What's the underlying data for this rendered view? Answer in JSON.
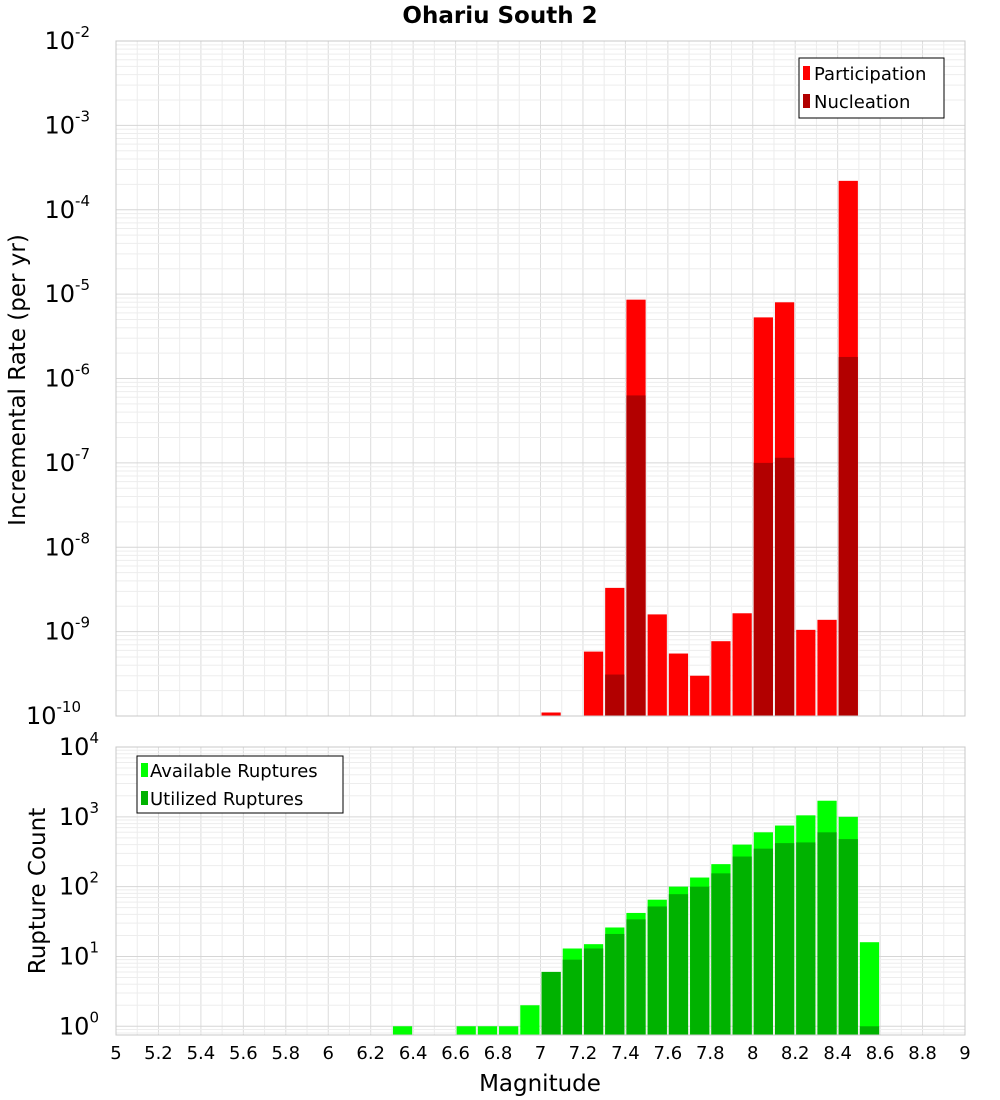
{
  "title": "Ohariu South 2",
  "chart_data": [
    {
      "type": "bar",
      "scale_y": "log",
      "title": "Ohariu South 2",
      "xlabel": "Magnitude",
      "ylabel": "Incremental Rate (per yr)",
      "xlim": [
        5,
        9
      ],
      "ylim": [
        1e-10,
        0.01
      ],
      "y_ticks": [
        {
          "base": "10",
          "exp": "-2"
        },
        {
          "base": "10",
          "exp": "-3"
        },
        {
          "base": "10",
          "exp": "-4"
        },
        {
          "base": "10",
          "exp": "-5"
        },
        {
          "base": "10",
          "exp": "-6"
        },
        {
          "base": "10",
          "exp": "-7"
        },
        {
          "base": "10",
          "exp": "-8"
        },
        {
          "base": "10",
          "exp": "-9"
        },
        {
          "base": "10",
          "exp": "-10"
        }
      ],
      "grid": true,
      "legend": "top-right",
      "x": [
        7.05,
        7.25,
        7.35,
        7.45,
        7.55,
        7.65,
        7.75,
        7.85,
        7.95,
        8.05,
        8.15,
        8.25,
        8.35,
        8.45
      ],
      "series": [
        {
          "name": "Participation",
          "color": "#ff0000",
          "values": [
            1.1e-10,
            5.8e-10,
            3.3e-09,
            8.6e-06,
            1.6e-09,
            5.5e-10,
            3e-10,
            7.7e-10,
            1.65e-09,
            5.3e-06,
            8e-06,
            1.05e-09,
            1.38e-09,
            0.00022
          ]
        },
        {
          "name": "Nucleation",
          "color": "#b20000",
          "values": [
            null,
            null,
            3.1e-10,
            6.3e-07,
            null,
            null,
            null,
            null,
            null,
            1e-07,
            1.15e-07,
            null,
            null,
            1.8e-06
          ]
        }
      ]
    },
    {
      "type": "bar",
      "scale_y": "log",
      "xlabel": "Magnitude",
      "ylabel": "Rupture Count",
      "xlim": [
        5,
        9
      ],
      "ylim": [
        0.75,
        10000
      ],
      "x_ticks": [
        "5",
        "5.2",
        "5.4",
        "5.6",
        "5.8",
        "6",
        "6.2",
        "6.4",
        "6.6",
        "6.8",
        "7",
        "7.2",
        "7.4",
        "7.6",
        "7.8",
        "8",
        "8.2",
        "8.4",
        "8.6",
        "8.8",
        "9"
      ],
      "y_ticks": [
        {
          "base": "10",
          "exp": "4"
        },
        {
          "base": "10",
          "exp": "3"
        },
        {
          "base": "10",
          "exp": "2"
        },
        {
          "base": "10",
          "exp": "1"
        },
        {
          "base": "10",
          "exp": "0"
        }
      ],
      "grid": true,
      "legend": "top-left",
      "x": [
        6.35,
        6.65,
        6.75,
        6.85,
        6.95,
        7.05,
        7.15,
        7.25,
        7.35,
        7.45,
        7.55,
        7.65,
        7.75,
        7.85,
        7.95,
        8.05,
        8.15,
        8.25,
        8.35,
        8.45,
        8.55
      ],
      "series": [
        {
          "name": "Available Ruptures",
          "color": "#00ff00",
          "values": [
            1,
            1,
            1,
            1,
            2,
            6,
            13,
            15,
            26,
            42,
            65,
            100,
            135,
            210,
            400,
            600,
            750,
            1050,
            1700,
            1000,
            16
          ]
        },
        {
          "name": "Utilized Ruptures",
          "color": "#00b200",
          "values": [
            null,
            null,
            null,
            null,
            null,
            6,
            9,
            13,
            21,
            34,
            52,
            78,
            100,
            155,
            270,
            350,
            420,
            430,
            600,
            480,
            1
          ]
        }
      ]
    }
  ]
}
